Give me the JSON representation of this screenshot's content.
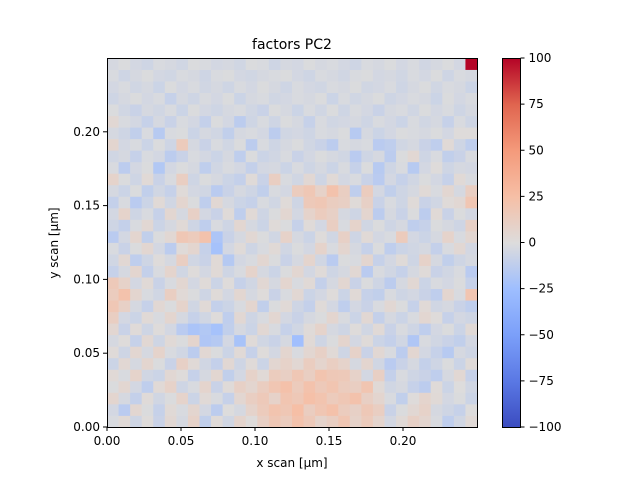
{
  "chart_data": {
    "type": "heatmap",
    "title": "factors PC2",
    "xlabel": "x scan [µm]",
    "ylabel": "y scan [µm]",
    "xlim": [
      0.0,
      0.25
    ],
    "ylim": [
      0.0,
      0.25
    ],
    "grid_cols": 32,
    "grid_rows": 32,
    "grid": false,
    "colormap": "coolwarm",
    "vmin": -100,
    "vmax": 100,
    "x_ticks": [
      "0.00",
      "0.05",
      "0.10",
      "0.15",
      "0.20"
    ],
    "x_tick_values": [
      0.0,
      0.05,
      0.1,
      0.15,
      0.2
    ],
    "y_ticks": [
      "0.00",
      "0.05",
      "0.10",
      "0.15",
      "0.20"
    ],
    "y_tick_values": [
      0.0,
      0.05,
      0.1,
      0.15,
      0.2
    ],
    "colorbar_ticks": [
      "100",
      "75",
      "50",
      "25",
      "0",
      "−25",
      "−50",
      "−75",
      "−100"
    ],
    "colorbar_tick_values": [
      100,
      75,
      50,
      25,
      0,
      -25,
      -50,
      -75,
      -100
    ],
    "values": [
      [
        -2,
        3,
        -6,
        1,
        -8,
        4,
        -3,
        9,
        -11,
        2,
        -5,
        7,
        1,
        11,
        18,
        14,
        22,
        16,
        8,
        12,
        19,
        9,
        15,
        7,
        -4,
        3,
        10,
        6,
        -2,
        -12,
        -5,
        3
      ],
      [
        -4,
        -14,
        5,
        -1,
        -9,
        3,
        -2,
        6,
        -4,
        -13,
        0,
        -3,
        8,
        15,
        21,
        18,
        25,
        13,
        19,
        23,
        14,
        10,
        17,
        12,
        -8,
        -1,
        4,
        9,
        -3,
        -6,
        -9,
        0
      ],
      [
        6,
        -3,
        -10,
        2,
        -5,
        -1,
        8,
        -7,
        3,
        -2,
        -9,
        5,
        12,
        16,
        9,
        20,
        17,
        24,
        21,
        15,
        18,
        22,
        11,
        6,
        -2,
        -11,
        1,
        7,
        3,
        -4,
        -1,
        -7
      ],
      [
        -1,
        5,
        -4,
        -12,
        3,
        9,
        -6,
        -2,
        7,
        -8,
        2,
        10,
        6,
        13,
        19,
        23,
        15,
        22,
        16,
        20,
        14,
        12,
        20,
        3,
        -5,
        -3,
        -9,
        -13,
        2,
        -7,
        0,
        -5
      ],
      [
        3,
        -2,
        8,
        -5,
        -7,
        4,
        1,
        -9,
        -3,
        5,
        -11,
        -4,
        9,
        3,
        14,
        11,
        18,
        12,
        21,
        17,
        16,
        9,
        -4,
        11,
        -10,
        -2,
        -6,
        -8,
        -12,
        -3,
        4,
        -9
      ],
      [
        -7,
        4,
        -3,
        6,
        -1,
        -8,
        10,
        3,
        -5,
        -10,
        4,
        -6,
        2,
        -7,
        5,
        9,
        4,
        13,
        7,
        12,
        8,
        -3,
        6,
        -5,
        -14,
        -8,
        -3,
        -10,
        -6,
        -1,
        -7,
        2
      ],
      [
        2,
        -6,
        5,
        -3,
        8,
        -2,
        -5,
        -13,
        4,
        -1,
        -7,
        3,
        -9,
        1,
        -4,
        6,
        -2,
        5,
        10,
        3,
        -6,
        9,
        -8,
        4,
        -2,
        -13,
        5,
        -4,
        -9,
        -15,
        -3,
        -6
      ],
      [
        -3,
        1,
        -9,
        4,
        -6,
        3,
        -1,
        7,
        -18,
        -16,
        -4,
        -21,
        2,
        -5,
        -8,
        -3,
        -24,
        3,
        -6,
        -1,
        7,
        -4,
        2,
        -7,
        -10,
        -5,
        -18,
        -2,
        -5,
        -8,
        -11,
        -4
      ],
      [
        5,
        -8,
        2,
        -6,
        1,
        -4,
        -14,
        -20,
        -17,
        -22,
        -11,
        -3,
        -7,
        4,
        -2,
        -9,
        -5,
        2,
        8,
        -3,
        -6,
        1,
        -5,
        3,
        -8,
        -2,
        -6,
        -12,
        -4,
        -1,
        -7,
        3
      ],
      [
        12,
        -4,
        -7,
        3,
        -2,
        6,
        -3,
        -9,
        -5,
        1,
        -12,
        4,
        -6,
        -2,
        5,
        -4,
        -8,
        -3,
        -1,
        6,
        -2,
        -7,
        4,
        -10,
        -3,
        -7,
        -2,
        5,
        1,
        -9,
        -4,
        -6
      ],
      [
        18,
        10,
        -3,
        -9,
        4,
        -1,
        8,
        -5,
        3,
        -10,
        -7,
        -2,
        6,
        -11,
        -1,
        3,
        -6,
        -10,
        2,
        -4,
        -12,
        -4,
        -8,
        -2,
        4,
        -1,
        -9,
        3,
        -5,
        -3,
        -8,
        -12
      ],
      [
        14,
        22,
        6,
        -2,
        -5,
        12,
        3,
        -1,
        -6,
        2,
        -4,
        5,
        -3,
        1,
        -8,
        -2,
        4,
        -7,
        -4,
        1,
        -7,
        3,
        -9,
        -11,
        -2,
        -6,
        -4,
        -8,
        -12,
        6,
        -2,
        20
      ],
      [
        16,
        9,
        -4,
        3,
        -8,
        -2,
        5,
        -4,
        2,
        -7,
        1,
        -9,
        -5,
        4,
        -3,
        6,
        -2,
        3,
        -10,
        -3,
        5,
        -8,
        -1,
        -6,
        -13,
        -3,
        4,
        -7,
        -2,
        -4,
        -1,
        -9
      ],
      [
        -9,
        -3,
        6,
        -10,
        -2,
        7,
        -5,
        1,
        -4,
        3,
        -6,
        -2,
        8,
        -3,
        -7,
        -1,
        5,
        -4,
        2,
        -6,
        -3,
        4,
        -14,
        -2,
        -5,
        -9,
        -3,
        2,
        -8,
        -5,
        -2,
        -14
      ],
      [
        -5,
        4,
        -12,
        -6,
        1,
        -3,
        12,
        -5,
        -8,
        3,
        -16,
        -4,
        -2,
        5,
        -1,
        -8,
        -3,
        7,
        -5,
        -14,
        -1,
        -2,
        6,
        -9,
        -4,
        2,
        -6,
        9,
        -3,
        -11,
        -6,
        -3
      ],
      [
        -2,
        -8,
        -1,
        5,
        -4,
        -13,
        2,
        6,
        -9,
        -22,
        -4,
        2,
        -6,
        -2,
        3,
        -5,
        -1,
        -4,
        8,
        -2,
        6,
        -3,
        -9,
        -1,
        -12,
        -7,
        -5,
        -3,
        -10,
        -2,
        4,
        -4
      ],
      [
        -14,
        -4,
        6,
        -11,
        -1,
        4,
        18,
        15,
        22,
        -19,
        -8,
        -3,
        4,
        -1,
        -5,
        9,
        -3,
        -7,
        1,
        -5,
        10,
        -6,
        3,
        -4,
        -2,
        15,
        -4,
        -7,
        -3,
        8,
        -2,
        5
      ],
      [
        -6,
        -10,
        -2,
        4,
        -7,
        -3,
        3,
        -6,
        -12,
        -2,
        -6,
        5,
        -3,
        -7,
        2,
        -1,
        -9,
        2,
        -4,
        12,
        -2,
        8,
        -5,
        -1,
        -6,
        -3,
        -12,
        -9,
        -1,
        -3,
        -6,
        10
      ],
      [
        -4,
        8,
        -6,
        -2,
        -9,
        5,
        -3,
        10,
        -4,
        -8,
        2,
        -12,
        3,
        -6,
        -1,
        5,
        -4,
        8,
        14,
        10,
        -3,
        -6,
        6,
        -13,
        -3,
        -8,
        -1,
        -13,
        3,
        -8,
        -1,
        -4
      ],
      [
        -10,
        -2,
        -14,
        -7,
        3,
        -5,
        6,
        -1,
        -12,
        4,
        -3,
        -7,
        -9,
        -2,
        -5,
        2,
        -6,
        16,
        18,
        13,
        11,
        2,
        10,
        -8,
        -2,
        -6,
        2,
        -8,
        -5,
        2,
        4,
        19
      ],
      [
        -3,
        -7,
        -1,
        -11,
        -5,
        -9,
        2,
        -4,
        -5,
        -14,
        -8,
        -3,
        -6,
        -11,
        -2,
        -4,
        14,
        18,
        9,
        22,
        12,
        -12,
        14,
        -4,
        -11,
        -6,
        -3,
        3,
        -2,
        5,
        -3,
        12
      ],
      [
        8,
        -1,
        -6,
        3,
        -8,
        -2,
        12,
        -6,
        -1,
        -3,
        -7,
        -10,
        2,
        -8,
        12,
        -2,
        -5,
        4,
        -6,
        3,
        -4,
        -2,
        -8,
        -14,
        -4,
        -9,
        -5,
        -1,
        -4,
        -9,
        3,
        -2
      ],
      [
        -2,
        -13,
        -4,
        -1,
        -17,
        -4,
        -1,
        -3,
        -12,
        -5,
        -2,
        -4,
        -10,
        -4,
        -3,
        -7,
        -2,
        -6,
        -3,
        -7,
        -2,
        -9,
        -1,
        -15,
        -6,
        -2,
        -15,
        -4,
        1,
        -6,
        -3,
        -4
      ],
      [
        -5,
        -3,
        -9,
        -2,
        -4,
        -13,
        -8,
        -2,
        -4,
        -7,
        -3,
        -12,
        -1,
        -7,
        -5,
        -2,
        -8,
        -4,
        -1,
        -3,
        -5,
        -14,
        -6,
        -3,
        -13,
        -1,
        4,
        -6,
        -2,
        -11,
        -8,
        -2
      ],
      [
        6,
        -4,
        -2,
        -7,
        -1,
        -6,
        15,
        -3,
        -8,
        -2,
        -5,
        -1,
        -13,
        -2,
        -6,
        -3,
        -1,
        -5,
        -8,
        -13,
        -2,
        -3,
        -2,
        -14,
        -12,
        -5,
        -3,
        -8,
        -12,
        3,
        -6,
        -12
      ],
      [
        -3,
        -6,
        -11,
        -2,
        -15,
        -2,
        -1,
        -7,
        -3,
        -5,
        -11,
        -3,
        -2,
        -4,
        -13,
        -5,
        -4,
        -6,
        -2,
        -3,
        -1,
        -15,
        -3,
        -7,
        -4,
        -1,
        -2,
        -3,
        -1,
        -4,
        1,
        1
      ],
      [
        4,
        -2,
        -4,
        -9,
        -3,
        -8,
        -2,
        -4,
        -10,
        -1,
        -4,
        -13,
        -6,
        -2,
        -6,
        -1,
        -3,
        -9,
        -2,
        -5,
        -4,
        -3,
        -6,
        -2,
        -4,
        -7,
        -2,
        -5,
        -3,
        -9,
        -2,
        -6
      ],
      [
        -1,
        -5,
        -8,
        -3,
        -5,
        -2,
        -7,
        -1,
        -4,
        -6,
        -3,
        -2,
        -5,
        -8,
        -1,
        -3,
        -7,
        -2,
        -5,
        -1,
        -6,
        -2,
        -4,
        -8,
        -3,
        -2,
        -5,
        -1,
        -4,
        -2,
        -6,
        -3
      ],
      [
        -6,
        -3,
        -1,
        -4,
        -2,
        -9,
        -3,
        -6,
        -2,
        -4,
        -1,
        -7,
        -3,
        -2,
        -5,
        -4,
        -2,
        -3,
        -1,
        -7,
        -2,
        -5,
        -3,
        -1,
        -6,
        -4,
        -2,
        -3,
        -7,
        -1,
        -4,
        -2
      ],
      [
        -4,
        -2,
        -5,
        -3,
        -7,
        -1,
        -4,
        -2,
        -5,
        -3,
        -6,
        -2,
        -4,
        -1,
        -3,
        -6,
        -2,
        -4,
        -5,
        -2,
        -3,
        -1,
        -5,
        -4,
        -2,
        -6,
        -3,
        -1,
        -5,
        -2,
        -3,
        -7
      ],
      [
        -2,
        -6,
        -3,
        -1,
        -4,
        -5,
        -2,
        -3,
        -6,
        -2,
        -1,
        -4,
        -5,
        -3,
        -2,
        -1,
        -4,
        -6,
        -2,
        -3,
        -5,
        -2,
        -1,
        -4,
        -3,
        -5,
        -2,
        -4,
        -1,
        -6,
        -2,
        -3
      ],
      [
        -3,
        -1,
        -4,
        -6,
        -2,
        -3,
        -5,
        -1,
        -2,
        -4,
        -3,
        -5,
        -1,
        -2,
        -6,
        -3,
        -4,
        -1,
        -3,
        -2,
        -4,
        -6,
        -2,
        -3,
        -1,
        -4,
        -2,
        -5,
        -3,
        -1,
        -4,
        100
      ]
    ]
  }
}
